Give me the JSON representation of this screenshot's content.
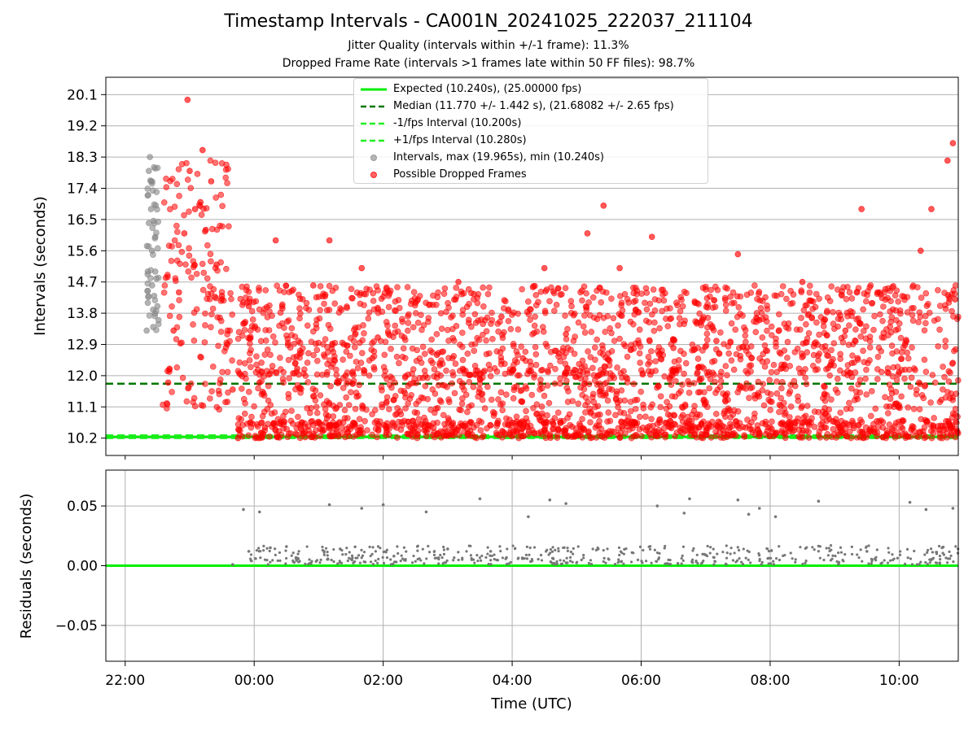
{
  "title": "Timestamp Intervals - CA001N_20241025_222037_211104",
  "subtitle1": "Jitter Quality (intervals within +/-1 frame): 11.3%",
  "subtitle2": "Dropped Frame Rate (intervals >1 frames late within 50 FF files): 98.7%",
  "colors": {
    "expected": "#00ee00",
    "median": "#007700",
    "fps_band": "#22ee22",
    "intervals": "#888888",
    "dropped": "#ff0000",
    "residuals": "#777777",
    "grid": "#b0b0b0"
  },
  "legend": [
    {
      "label": "Expected (10.240s), (25.00000 fps)",
      "symbol": "solid-line",
      "color": "#00ee00"
    },
    {
      "label": "Median (11.770 +/- 1.442 s), (21.68082 +/- 2.65 fps)",
      "symbol": "dashed-line",
      "color": "#007700"
    },
    {
      "label": "-1/fps Interval (10.200s)",
      "symbol": "dashed-line",
      "color": "#22ee22"
    },
    {
      "label": "+1/fps Interval (10.280s)",
      "symbol": "dashed-line",
      "color": "#22ee22"
    },
    {
      "label": "Intervals, max (19.965s), min (10.240s)",
      "symbol": "dot",
      "color": "#888888"
    },
    {
      "label": "Possible Dropped Frames",
      "symbol": "dot",
      "color": "#ff0000"
    }
  ],
  "chart_data": [
    {
      "type": "scatter",
      "panel": "top",
      "ylabel": "Intervals (seconds)",
      "ylim": [
        9.7,
        20.6
      ],
      "yticks": [
        "10.2",
        "11.1",
        "12.0",
        "12.9",
        "13.8",
        "14.7",
        "15.6",
        "16.5",
        "17.4",
        "18.3",
        "19.2",
        "20.1"
      ],
      "xlim": [
        "21:42",
        "10:55"
      ],
      "grid": true,
      "legend_position": "upper-center",
      "reference_lines": [
        {
          "name": "Expected",
          "y": 10.24
        },
        {
          "name": "Median",
          "y": 11.77
        },
        {
          "name": "-1/fps Interval",
          "y": 10.2
        },
        {
          "name": "+1/fps Interval",
          "y": 10.28
        }
      ],
      "series": [
        {
          "name": "Intervals",
          "points": [
            [
              "22:20",
              13.3
            ],
            [
              "22:21",
              14.1
            ],
            [
              "22:21",
              15.0
            ],
            [
              "22:22",
              16.4
            ],
            [
              "22:22",
              17.9
            ],
            [
              "22:23",
              18.3
            ],
            [
              "22:24",
              17.6
            ],
            [
              "22:24",
              16.8
            ],
            [
              "22:25",
              15.6
            ],
            [
              "22:25",
              14.6
            ],
            [
              "22:26",
              13.9
            ],
            [
              "22:26",
              13.4
            ],
            [
              "22:27",
              14.3
            ],
            [
              "22:28",
              15.0
            ],
            [
              "22:28",
              16.0
            ],
            [
              "22:29",
              14.8
            ],
            [
              "22:30",
              14.0
            ],
            [
              "22:31",
              13.6
            ]
          ]
        },
        {
          "name": "Possible Dropped Frames",
          "points": [
            [
              "22:40",
              11.8
            ],
            [
              "22:45",
              13.3
            ],
            [
              "22:50",
              14.4
            ],
            [
              "22:55",
              16.1
            ],
            [
              "23:00",
              17.9
            ],
            [
              "23:05",
              16.8
            ],
            [
              "22:58",
              19.95
            ],
            [
              "23:10",
              17.0
            ],
            [
              "23:12",
              18.5
            ],
            [
              "23:15",
              16.2
            ],
            [
              "23:20",
              17.6
            ],
            [
              "23:25",
              15.2
            ],
            [
              "23:30",
              14.3
            ],
            [
              "23:35",
              12.9
            ],
            [
              "23:40",
              11.6
            ],
            [
              "23:45",
              10.2
            ],
            [
              "23:50",
              13.5
            ],
            [
              "23:55",
              14.0
            ],
            [
              "00:05",
              11.8
            ],
            [
              "00:10",
              10.5
            ],
            [
              "00:20",
              15.9
            ],
            [
              "00:40",
              12.2
            ],
            [
              "00:55",
              14.6
            ],
            [
              "01:10",
              15.9
            ],
            [
              "01:25",
              12.0
            ],
            [
              "01:40",
              15.1
            ],
            [
              "01:55",
              13.1
            ],
            [
              "02:10",
              11.3
            ],
            [
              "02:30",
              14.1
            ],
            [
              "02:50",
              12.6
            ],
            [
              "03:10",
              14.7
            ],
            [
              "03:30",
              11.9
            ],
            [
              "03:50",
              13.7
            ],
            [
              "04:10",
              12.5
            ],
            [
              "04:30",
              15.1
            ],
            [
              "04:50",
              13.2
            ],
            [
              "05:10",
              16.1
            ],
            [
              "05:25",
              16.9
            ],
            [
              "05:40",
              15.1
            ],
            [
              "05:55",
              13.9
            ],
            [
              "06:10",
              16.0
            ],
            [
              "06:30",
              12.8
            ],
            [
              "06:50",
              14.1
            ],
            [
              "07:10",
              13.0
            ],
            [
              "07:30",
              15.5
            ],
            [
              "07:50",
              13.6
            ],
            [
              "08:10",
              12.2
            ],
            [
              "08:30",
              14.7
            ],
            [
              "08:50",
              11.7
            ],
            [
              "09:10",
              13.3
            ],
            [
              "09:25",
              16.8
            ],
            [
              "09:40",
              14.4
            ],
            [
              "10:00",
              12.1
            ],
            [
              "10:20",
              15.6
            ],
            [
              "10:30",
              16.8
            ],
            [
              "10:45",
              18.2
            ],
            [
              "10:50",
              18.7
            ],
            [
              "10:52",
              14.2
            ]
          ]
        }
      ]
    },
    {
      "type": "scatter",
      "panel": "bottom",
      "xlabel": "Time (UTC)",
      "ylabel": "Residuals (seconds)",
      "ylim": [
        -0.08,
        0.08
      ],
      "yticks": [
        "−0.05",
        "0.00",
        "0.05"
      ],
      "xticks": [
        "22:00",
        "00:00",
        "02:00",
        "04:00",
        "06:00",
        "08:00",
        "10:00"
      ],
      "xlim": [
        "21:42",
        "10:55"
      ],
      "grid": true,
      "reference_lines": [
        {
          "name": "Zero",
          "y": 0.0
        }
      ],
      "series": [
        {
          "name": "Residuals",
          "points": [
            [
              "23:40",
              0.001
            ],
            [
              "23:50",
              0.047
            ],
            [
              "23:55",
              0.012
            ],
            [
              "00:05",
              0.045
            ],
            [
              "00:15",
              0.015
            ],
            [
              "00:30",
              0.016
            ],
            [
              "01:10",
              0.051
            ],
            [
              "01:20",
              0.014
            ],
            [
              "01:40",
              0.048
            ],
            [
              "02:00",
              0.051
            ],
            [
              "02:10",
              0.008
            ],
            [
              "02:40",
              0.045
            ],
            [
              "03:00",
              0.014
            ],
            [
              "03:30",
              0.056
            ],
            [
              "03:40",
              0.012
            ],
            [
              "04:15",
              0.041
            ],
            [
              "04:35",
              0.055
            ],
            [
              "04:50",
              0.052
            ],
            [
              "05:20",
              0.014
            ],
            [
              "06:15",
              0.05
            ],
            [
              "06:40",
              0.044
            ],
            [
              "06:45",
              0.056
            ],
            [
              "07:00",
              0.009
            ],
            [
              "07:30",
              0.055
            ],
            [
              "07:40",
              0.043
            ],
            [
              "07:50",
              0.048
            ],
            [
              "08:05",
              0.041
            ],
            [
              "08:45",
              0.054
            ],
            [
              "09:30",
              0.012
            ],
            [
              "10:10",
              0.053
            ],
            [
              "10:25",
              0.047
            ],
            [
              "10:40",
              0.015
            ],
            [
              "10:50",
              0.048
            ]
          ]
        }
      ]
    }
  ]
}
